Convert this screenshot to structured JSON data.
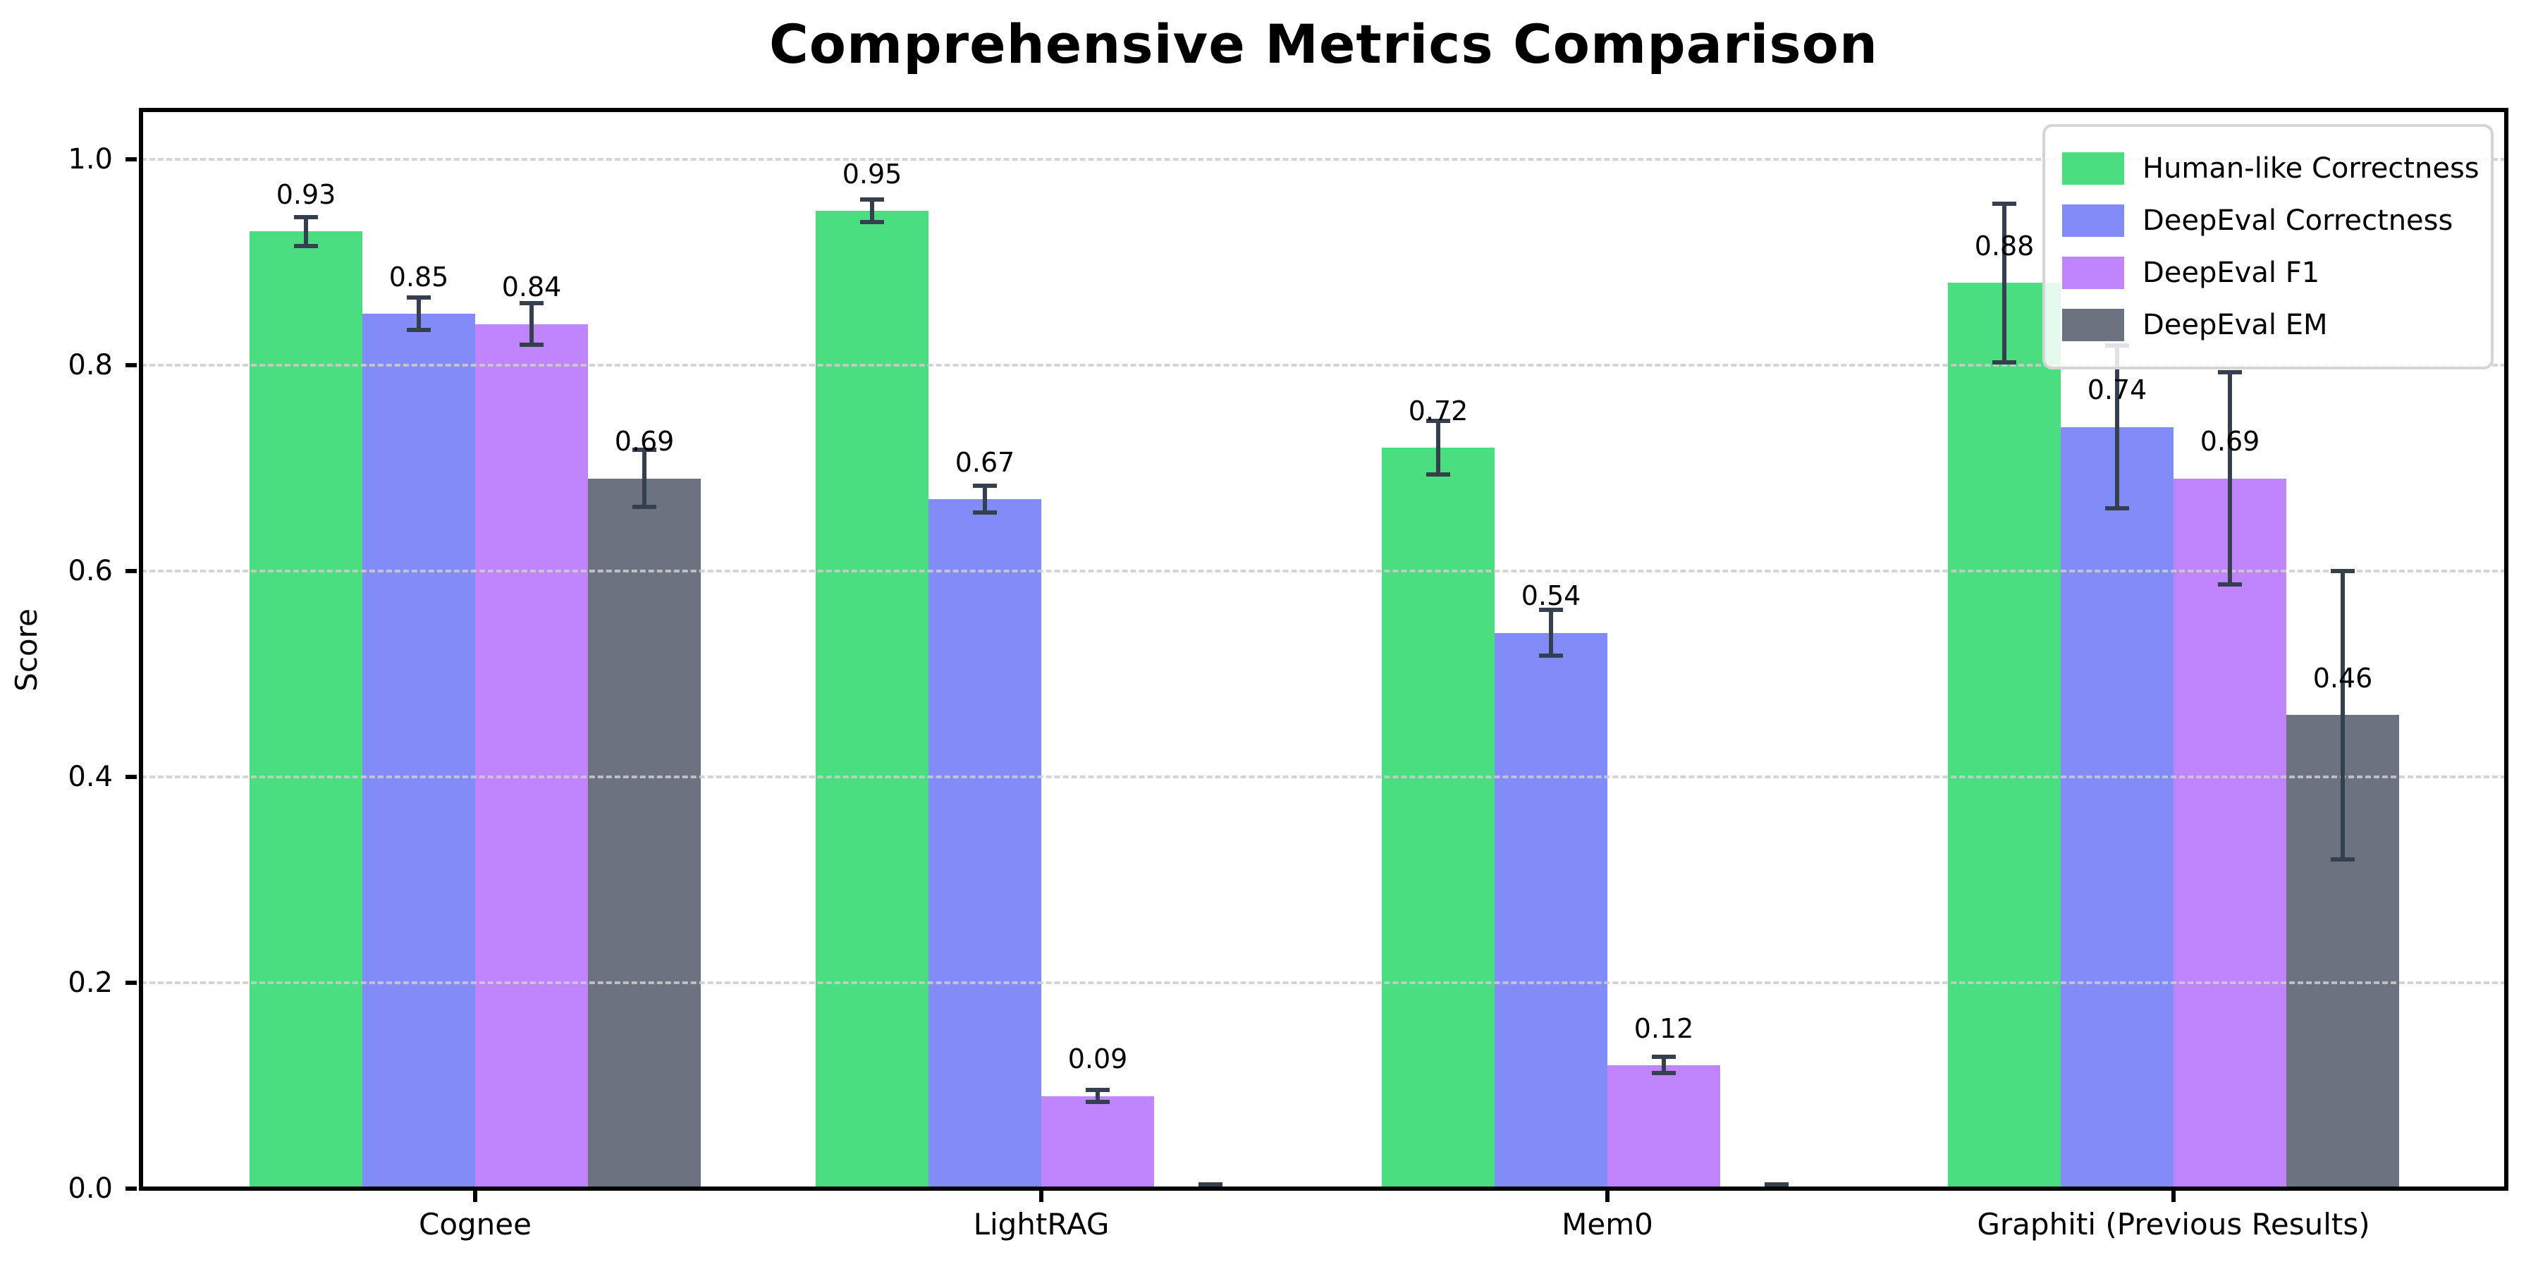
{
  "figure": {
    "title": "Comprehensive Metrics Comparison"
  },
  "axes": {
    "ylabel": "Score",
    "yticks": [
      "0.0",
      "0.2",
      "0.4",
      "0.6",
      "0.8",
      "1.0"
    ],
    "xticklabels": [
      "Cognee",
      "LightRAG",
      "Mem0",
      "Graphiti (Previous Results)"
    ]
  },
  "colors": {
    "errorbar": "#35404f",
    "grid": "#cdcdcd",
    "spine": "#000000",
    "legend_border": "#d5d5d5",
    "legend_background": "rgba(255,255,255,0.85)"
  },
  "chart_data": {
    "type": "bar",
    "title": "Comprehensive Metrics Comparison",
    "xlabel": "",
    "ylabel": "Score",
    "categories": [
      "Cognee",
      "LightRAG",
      "Mem0",
      "Graphiti (Previous Results)"
    ],
    "series": [
      {
        "name": "Human-like Correctness",
        "color": "#4ade80",
        "values": [
          0.93,
          0.95,
          0.72,
          0.88
        ],
        "errors": [
          0.014,
          0.011,
          0.026,
          0.077
        ],
        "value_labels": [
          "0.93",
          "0.95",
          "0.72",
          "0.88"
        ]
      },
      {
        "name": "DeepEval Correctness",
        "color": "#818cf8",
        "values": [
          0.85,
          0.67,
          0.54,
          0.74
        ],
        "errors": [
          0.016,
          0.013,
          0.022,
          0.079
        ],
        "value_labels": [
          "0.85",
          "0.67",
          "0.54",
          "0.74"
        ]
      },
      {
        "name": "DeepEval F1",
        "color": "#c084fc",
        "values": [
          0.84,
          0.09,
          0.12,
          0.69
        ],
        "errors": [
          0.02,
          0.006,
          0.008,
          0.103
        ],
        "value_labels": [
          "0.84",
          "0.09",
          "0.12",
          "0.69"
        ]
      },
      {
        "name": "DeepEval EM",
        "color": "#6b7280",
        "values": [
          0.69,
          0.0,
          0.0,
          0.46
        ],
        "errors": [
          0.028,
          0.004,
          0.004,
          0.14
        ],
        "value_labels": [
          "0.69",
          null,
          null,
          "0.46"
        ]
      }
    ],
    "yticks": [
      0.0,
      0.2,
      0.4,
      0.6,
      0.8,
      1.0
    ],
    "ylim": [
      0,
      1.048
    ],
    "grid": "horizontal-dashed",
    "legend_position": "upper right"
  }
}
